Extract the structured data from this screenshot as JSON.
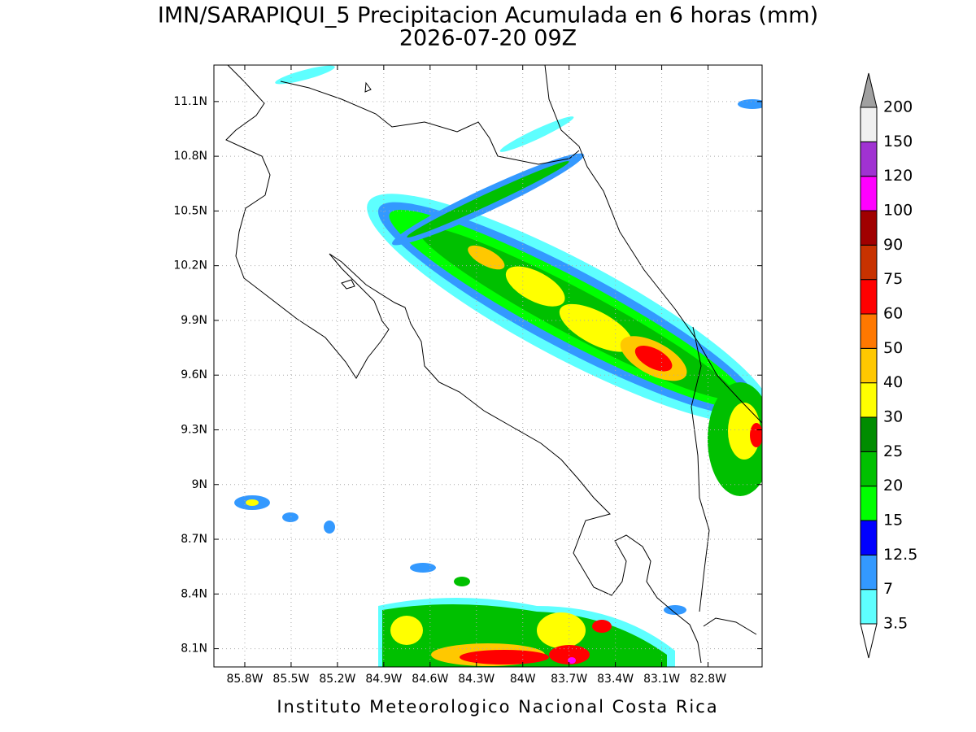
{
  "title": "IMN/SARAPIQUI_5 Precipitacion Acumulada en 6 horas (mm)",
  "subtitle": "2026-07-20 09Z",
  "map": {
    "lonlim": [
      -86,
      -82.45
    ],
    "latlim": [
      8,
      11.3
    ],
    "lon_ticks": [
      {
        "value": -85.8,
        "label": "85.8W"
      },
      {
        "value": -85.5,
        "label": "85.5W"
      },
      {
        "value": -85.2,
        "label": "85.2W"
      },
      {
        "value": -84.9,
        "label": "84.9W"
      },
      {
        "value": -84.6,
        "label": "84.6W"
      },
      {
        "value": -84.3,
        "label": "84.3W"
      },
      {
        "value": -84,
        "label": "84W"
      },
      {
        "value": -83.7,
        "label": "83.7W"
      },
      {
        "value": -83.4,
        "label": "83.4W"
      },
      {
        "value": -83.1,
        "label": "83.1W"
      },
      {
        "value": -82.8,
        "label": "82.8W"
      }
    ],
    "lat_ticks": [
      {
        "value": 8.1,
        "label": "8.1N"
      },
      {
        "value": 8.4,
        "label": "8.4N"
      },
      {
        "value": 8.7,
        "label": "8.7N"
      },
      {
        "value": 9,
        "label": "9N"
      },
      {
        "value": 9.3,
        "label": "9.3N"
      },
      {
        "value": 9.6,
        "label": "9.6N"
      },
      {
        "value": 9.9,
        "label": "9.9N"
      },
      {
        "value": 10.2,
        "label": "10.2N"
      },
      {
        "value": 10.5,
        "label": "10.5N"
      },
      {
        "value": 10.8,
        "label": "10.8N"
      },
      {
        "value": 11.1,
        "label": "11.1N"
      }
    ]
  },
  "colorbar": {
    "levels": [
      3.5,
      7,
      12.5,
      15,
      20,
      25,
      30,
      40,
      50,
      60,
      75,
      90,
      100,
      120,
      150,
      200
    ],
    "colors": [
      "#ffffff",
      "#5effff",
      "#3399ff",
      "#0000ff",
      "#00ff00",
      "#00c000",
      "#008c00",
      "#ffff00",
      "#ffc800",
      "#ff7800",
      "#ff0000",
      "#c83200",
      "#a00000",
      "#ff00ff",
      "#a032d2",
      "#f0f0f0",
      "#a0a0a0"
    ]
  },
  "footer": "Instituto Meteorologico Nacional Costa Rica"
}
